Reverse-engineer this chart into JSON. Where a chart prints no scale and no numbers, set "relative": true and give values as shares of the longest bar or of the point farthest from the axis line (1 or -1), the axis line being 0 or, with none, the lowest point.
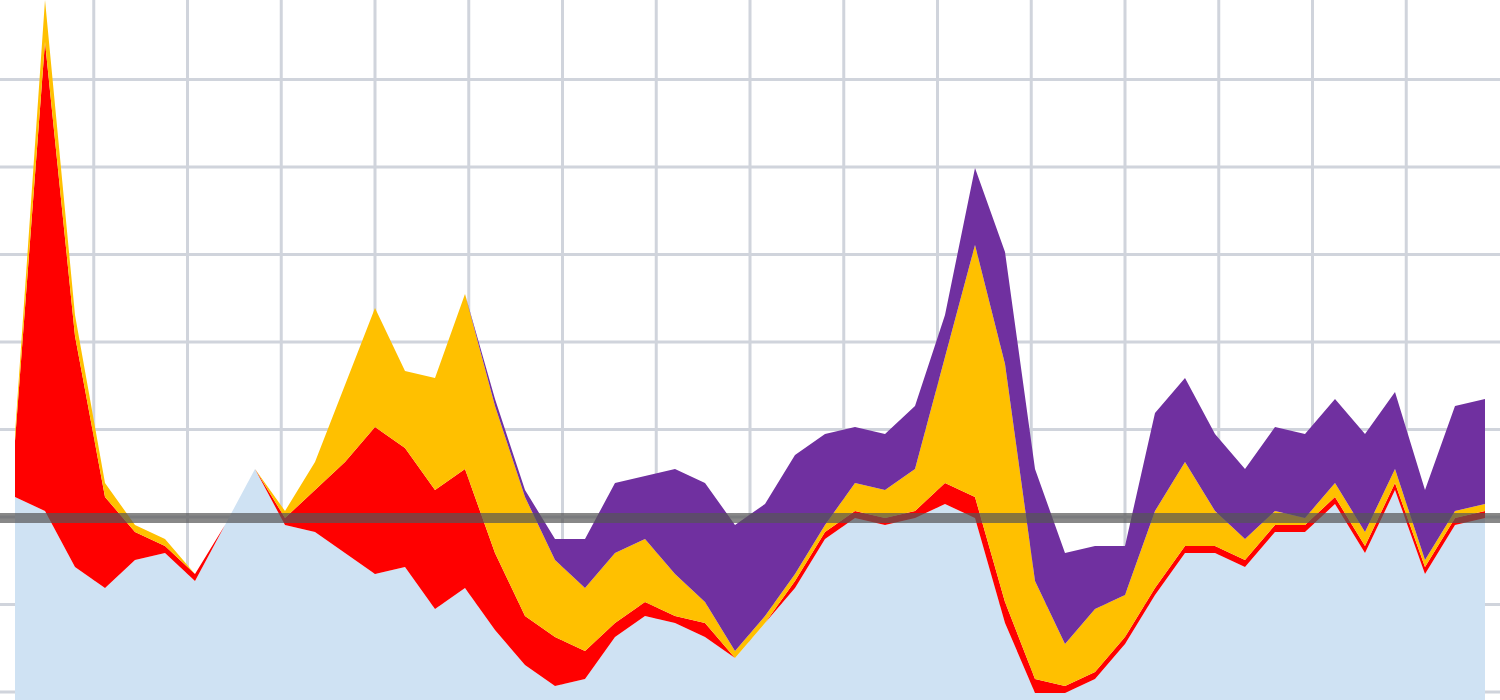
{
  "chart_data": {
    "type": "area",
    "stacked": true,
    "relative": true,
    "grid": true,
    "categories": [
      null,
      null,
      null,
      null,
      null,
      null,
      null,
      null,
      null,
      null,
      null,
      null,
      null,
      null,
      null,
      null,
      null,
      null,
      null,
      null,
      null,
      null,
      null,
      null,
      null,
      null,
      null,
      null,
      null,
      null,
      null,
      null,
      null,
      null,
      null,
      null,
      null,
      null,
      null,
      null,
      null,
      null,
      null,
      null,
      null,
      null,
      null,
      null,
      null,
      null
    ],
    "series": [
      {
        "color": "#cfe2f3",
        "values": [
          0.29,
          0.27,
          0.19,
          0.16,
          0.2,
          0.21,
          0.17,
          0.25,
          0.33,
          0.25,
          0.24,
          0.21,
          0.18,
          0.19,
          0.13,
          0.16,
          0.1,
          0.05,
          0.02,
          0.03,
          0.09,
          0.12,
          0.11,
          0.09,
          0.06,
          0.11,
          0.16,
          0.23,
          0.26,
          0.25,
          0.26,
          0.28,
          0.26,
          0.11,
          0.01,
          0.01,
          0.03,
          0.08,
          0.15,
          0.21,
          0.21,
          0.19,
          0.24,
          0.24,
          0.28,
          0.21,
          0.3,
          0.18,
          0.25,
          0.26
        ]
      },
      {
        "color": "#ff0000",
        "values": [
          0.08,
          0.67,
          0.33,
          0.13,
          0.04,
          0.01,
          0.01,
          0,
          0,
          0.01,
          0.06,
          0.13,
          0.21,
          0.17,
          0.17,
          0.17,
          0.11,
          0.07,
          0.07,
          0.04,
          0.02,
          0.02,
          0.01,
          0.02,
          0,
          0,
          0.01,
          0.01,
          0.01,
          0.01,
          0.01,
          0.03,
          0.03,
          0.03,
          0.02,
          0.01,
          0.01,
          0.01,
          0.01,
          0.01,
          0.01,
          0.01,
          0.01,
          0.01,
          0.01,
          0.01,
          0.01,
          0.01,
          0.01,
          0.01
        ]
      },
      {
        "color": "#ffc000",
        "values": [
          0.01,
          0.06,
          0.03,
          0.02,
          0.01,
          0.01,
          0,
          0,
          0,
          0.01,
          0.04,
          0.11,
          0.17,
          0.11,
          0.16,
          0.25,
          0.21,
          0.17,
          0.11,
          0.09,
          0.1,
          0.09,
          0.06,
          0.03,
          0.01,
          0.01,
          0.01,
          0.01,
          0.04,
          0.04,
          0.06,
          0.18,
          0.36,
          0.34,
          0.14,
          0.06,
          0.09,
          0.06,
          0.11,
          0.12,
          0.05,
          0.03,
          0.02,
          0.01,
          0.02,
          0.02,
          0.02,
          0.01,
          0.01,
          0.01
        ]
      },
      {
        "color": "#7030a0",
        "values": [
          0,
          0,
          0,
          0,
          0,
          0,
          0,
          0,
          0,
          0,
          0,
          0,
          0,
          0,
          0,
          0,
          0.01,
          0.01,
          0.03,
          0.07,
          0.1,
          0.09,
          0.15,
          0.17,
          0.18,
          0.16,
          0.17,
          0.13,
          0.08,
          0.08,
          0.09,
          0.06,
          0.11,
          0.16,
          0.16,
          0.13,
          0.09,
          0.07,
          0.14,
          0.12,
          0.11,
          0.1,
          0.12,
          0.12,
          0.12,
          0.14,
          0.11,
          0.1,
          0.15,
          0.15
        ]
      }
    ],
    "ref_lines": [
      {
        "axis": "y",
        "value": 0.26,
        "color": "#555555"
      }
    ]
  }
}
